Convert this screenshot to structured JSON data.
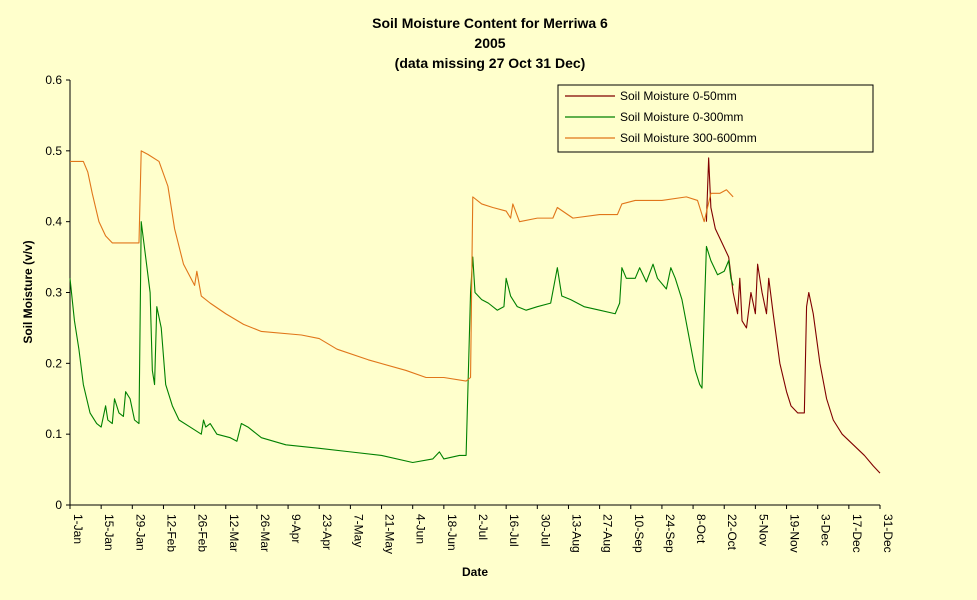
{
  "chart_data": {
    "type": "line",
    "title": "Soil Moisture Content for Merriwa 6",
    "subtitle_lines": [
      "2005",
      "(data missing 27 Oct 31 Dec)"
    ],
    "xlabel": "Date",
    "ylabel": "Soil Moisture (v/v)",
    "x_is_date": true,
    "xlim": [
      "2005-01-01",
      "2005-12-31"
    ],
    "ylim": [
      0,
      0.6
    ],
    "y_ticks": [
      "0",
      "0.1",
      "0.2",
      "0.3",
      "0.4",
      "0.5",
      "0.6"
    ],
    "x_ticks": [
      {
        "date": "2005-01-01",
        "label": "1-Jan"
      },
      {
        "date": "2005-01-15",
        "label": "15-Jan"
      },
      {
        "date": "2005-01-29",
        "label": "29-Jan"
      },
      {
        "date": "2005-02-12",
        "label": "12-Feb"
      },
      {
        "date": "2005-02-26",
        "label": "26-Feb"
      },
      {
        "date": "2005-03-12",
        "label": "12-Mar"
      },
      {
        "date": "2005-03-26",
        "label": "26-Mar"
      },
      {
        "date": "2005-04-09",
        "label": "9-Apr"
      },
      {
        "date": "2005-04-23",
        "label": "23-Apr"
      },
      {
        "date": "2005-05-07",
        "label": "7-May"
      },
      {
        "date": "2005-05-21",
        "label": "21-May"
      },
      {
        "date": "2005-06-04",
        "label": "4-Jun"
      },
      {
        "date": "2005-06-18",
        "label": "18-Jun"
      },
      {
        "date": "2005-07-02",
        "label": "2-Jul"
      },
      {
        "date": "2005-07-16",
        "label": "16-Jul"
      },
      {
        "date": "2005-07-30",
        "label": "30-Jul"
      },
      {
        "date": "2005-08-13",
        "label": "13-Aug"
      },
      {
        "date": "2005-08-27",
        "label": "27-Aug"
      },
      {
        "date": "2005-09-10",
        "label": "10-Sep"
      },
      {
        "date": "2005-09-24",
        "label": "24-Sep"
      },
      {
        "date": "2005-10-08",
        "label": "8-Oct"
      },
      {
        "date": "2005-10-22",
        "label": "22-Oct"
      },
      {
        "date": "2005-11-05",
        "label": "5-Nov"
      },
      {
        "date": "2005-11-19",
        "label": "19-Nov"
      },
      {
        "date": "2005-12-03",
        "label": "3-Dec"
      },
      {
        "date": "2005-12-17",
        "label": "17-Dec"
      },
      {
        "date": "2005-12-31",
        "label": "31-Dec"
      }
    ],
    "grid": false,
    "legend_position": "top-right",
    "series": [
      {
        "name": "Soil Moisture 0-50mm",
        "color": "#800000",
        "points": [
          [
            "2005-10-14",
            0.4
          ],
          [
            "2005-10-15",
            0.49
          ],
          [
            "2005-10-16",
            0.42
          ],
          [
            "2005-10-18",
            0.39
          ],
          [
            "2005-10-21",
            0.37
          ],
          [
            "2005-10-24",
            0.35
          ],
          [
            "2005-10-26",
            0.3
          ],
          [
            "2005-10-28",
            0.27
          ],
          [
            "2005-10-29",
            0.32
          ],
          [
            "2005-10-30",
            0.26
          ],
          [
            "2005-11-01",
            0.25
          ],
          [
            "2005-11-03",
            0.3
          ],
          [
            "2005-11-05",
            0.27
          ],
          [
            "2005-11-06",
            0.34
          ],
          [
            "2005-11-08",
            0.3
          ],
          [
            "2005-11-10",
            0.27
          ],
          [
            "2005-11-11",
            0.32
          ],
          [
            "2005-11-13",
            0.27
          ],
          [
            "2005-11-16",
            0.2
          ],
          [
            "2005-11-19",
            0.16
          ],
          [
            "2005-11-21",
            0.14
          ],
          [
            "2005-11-24",
            0.13
          ],
          [
            "2005-11-27",
            0.13
          ],
          [
            "2005-11-28",
            0.28
          ],
          [
            "2005-11-29",
            0.3
          ],
          [
            "2005-12-01",
            0.27
          ],
          [
            "2005-12-04",
            0.2
          ],
          [
            "2005-12-07",
            0.15
          ],
          [
            "2005-12-10",
            0.12
          ],
          [
            "2005-12-14",
            0.1
          ],
          [
            "2005-12-19",
            0.085
          ],
          [
            "2005-12-24",
            0.07
          ],
          [
            "2005-12-28",
            0.055
          ],
          [
            "2005-12-31",
            0.045
          ]
        ]
      },
      {
        "name": "Soil Moisture 0-300mm",
        "color": "#008000",
        "points": [
          [
            "2005-01-01",
            0.32
          ],
          [
            "2005-01-03",
            0.26
          ],
          [
            "2005-01-05",
            0.22
          ],
          [
            "2005-01-07",
            0.17
          ],
          [
            "2005-01-10",
            0.13
          ],
          [
            "2005-01-13",
            0.115
          ],
          [
            "2005-01-15",
            0.11
          ],
          [
            "2005-01-17",
            0.14
          ],
          [
            "2005-01-18",
            0.12
          ],
          [
            "2005-01-20",
            0.115
          ],
          [
            "2005-01-21",
            0.15
          ],
          [
            "2005-01-23",
            0.13
          ],
          [
            "2005-01-25",
            0.125
          ],
          [
            "2005-01-26",
            0.16
          ],
          [
            "2005-01-28",
            0.15
          ],
          [
            "2005-01-30",
            0.12
          ],
          [
            "2005-02-01",
            0.115
          ],
          [
            "2005-02-02",
            0.4
          ],
          [
            "2005-02-04",
            0.35
          ],
          [
            "2005-02-06",
            0.3
          ],
          [
            "2005-02-07",
            0.19
          ],
          [
            "2005-02-08",
            0.17
          ],
          [
            "2005-02-09",
            0.28
          ],
          [
            "2005-02-11",
            0.25
          ],
          [
            "2005-02-13",
            0.17
          ],
          [
            "2005-02-16",
            0.14
          ],
          [
            "2005-02-19",
            0.12
          ],
          [
            "2005-02-24",
            0.11
          ],
          [
            "2005-03-01",
            0.1
          ],
          [
            "2005-03-02",
            0.12
          ],
          [
            "2005-03-03",
            0.11
          ],
          [
            "2005-03-05",
            0.115
          ],
          [
            "2005-03-08",
            0.1
          ],
          [
            "2005-03-14",
            0.095
          ],
          [
            "2005-03-17",
            0.09
          ],
          [
            "2005-03-19",
            0.115
          ],
          [
            "2005-03-22",
            0.11
          ],
          [
            "2005-03-28",
            0.095
          ],
          [
            "2005-04-08",
            0.085
          ],
          [
            "2005-04-23",
            0.08
          ],
          [
            "2005-05-07",
            0.075
          ],
          [
            "2005-05-21",
            0.07
          ],
          [
            "2005-06-04",
            0.06
          ],
          [
            "2005-06-13",
            0.065
          ],
          [
            "2005-06-16",
            0.075
          ],
          [
            "2005-06-18",
            0.065
          ],
          [
            "2005-06-25",
            0.07
          ],
          [
            "2005-06-28",
            0.07
          ],
          [
            "2005-06-30",
            0.3
          ],
          [
            "2005-07-01",
            0.35
          ],
          [
            "2005-07-02",
            0.3
          ],
          [
            "2005-07-05",
            0.29
          ],
          [
            "2005-07-08",
            0.285
          ],
          [
            "2005-07-12",
            0.275
          ],
          [
            "2005-07-15",
            0.28
          ],
          [
            "2005-07-16",
            0.32
          ],
          [
            "2005-07-18",
            0.295
          ],
          [
            "2005-07-21",
            0.28
          ],
          [
            "2005-07-25",
            0.275
          ],
          [
            "2005-07-30",
            0.28
          ],
          [
            "2005-08-05",
            0.285
          ],
          [
            "2005-08-08",
            0.335
          ],
          [
            "2005-08-10",
            0.295
          ],
          [
            "2005-08-14",
            0.29
          ],
          [
            "2005-08-20",
            0.28
          ],
          [
            "2005-08-27",
            0.275
          ],
          [
            "2005-09-03",
            0.27
          ],
          [
            "2005-09-05",
            0.285
          ],
          [
            "2005-09-06",
            0.335
          ],
          [
            "2005-09-08",
            0.32
          ],
          [
            "2005-09-12",
            0.32
          ],
          [
            "2005-09-14",
            0.335
          ],
          [
            "2005-09-17",
            0.315
          ],
          [
            "2005-09-20",
            0.34
          ],
          [
            "2005-09-22",
            0.32
          ],
          [
            "2005-09-26",
            0.305
          ],
          [
            "2005-09-28",
            0.335
          ],
          [
            "2005-09-30",
            0.32
          ],
          [
            "2005-10-03",
            0.29
          ],
          [
            "2005-10-06",
            0.24
          ],
          [
            "2005-10-09",
            0.19
          ],
          [
            "2005-10-11",
            0.17
          ],
          [
            "2005-10-12",
            0.165
          ],
          [
            "2005-10-13",
            0.27
          ],
          [
            "2005-10-14",
            0.365
          ],
          [
            "2005-10-16",
            0.345
          ],
          [
            "2005-10-19",
            0.325
          ],
          [
            "2005-10-22",
            0.33
          ],
          [
            "2005-10-24",
            0.345
          ],
          [
            "2005-10-25",
            0.32
          ],
          [
            "2005-10-26",
            0.31
          ]
        ]
      },
      {
        "name": "Soil Moisture 300-600mm",
        "color": "#e0761a",
        "points": [
          [
            "2005-01-01",
            0.485
          ],
          [
            "2005-01-03",
            0.485
          ],
          [
            "2005-01-07",
            0.485
          ],
          [
            "2005-01-09",
            0.47
          ],
          [
            "2005-01-11",
            0.44
          ],
          [
            "2005-01-14",
            0.4
          ],
          [
            "2005-01-17",
            0.38
          ],
          [
            "2005-01-20",
            0.37
          ],
          [
            "2005-01-25",
            0.37
          ],
          [
            "2005-02-01",
            0.37
          ],
          [
            "2005-02-02",
            0.5
          ],
          [
            "2005-02-05",
            0.495
          ],
          [
            "2005-02-10",
            0.485
          ],
          [
            "2005-02-14",
            0.45
          ],
          [
            "2005-02-17",
            0.39
          ],
          [
            "2005-02-21",
            0.34
          ],
          [
            "2005-02-26",
            0.31
          ],
          [
            "2005-02-27",
            0.33
          ],
          [
            "2005-03-01",
            0.295
          ],
          [
            "2005-03-05",
            0.285
          ],
          [
            "2005-03-12",
            0.27
          ],
          [
            "2005-03-20",
            0.255
          ],
          [
            "2005-03-28",
            0.245
          ],
          [
            "2005-04-15",
            0.24
          ],
          [
            "2005-04-23",
            0.235
          ],
          [
            "2005-05-01",
            0.22
          ],
          [
            "2005-05-15",
            0.205
          ],
          [
            "2005-06-01",
            0.19
          ],
          [
            "2005-06-10",
            0.18
          ],
          [
            "2005-06-18",
            0.18
          ],
          [
            "2005-06-28",
            0.175
          ],
          [
            "2005-06-30",
            0.18
          ],
          [
            "2005-07-01",
            0.435
          ],
          [
            "2005-07-05",
            0.425
          ],
          [
            "2005-07-10",
            0.42
          ],
          [
            "2005-07-16",
            0.415
          ],
          [
            "2005-07-18",
            0.405
          ],
          [
            "2005-07-19",
            0.425
          ],
          [
            "2005-07-22",
            0.4
          ],
          [
            "2005-07-30",
            0.405
          ],
          [
            "2005-08-06",
            0.405
          ],
          [
            "2005-08-08",
            0.42
          ],
          [
            "2005-08-15",
            0.405
          ],
          [
            "2005-08-27",
            0.41
          ],
          [
            "2005-09-04",
            0.41
          ],
          [
            "2005-09-06",
            0.425
          ],
          [
            "2005-09-12",
            0.43
          ],
          [
            "2005-09-24",
            0.43
          ],
          [
            "2005-10-05",
            0.435
          ],
          [
            "2005-10-10",
            0.43
          ],
          [
            "2005-10-13",
            0.4
          ],
          [
            "2005-10-16",
            0.44
          ],
          [
            "2005-10-20",
            0.44
          ],
          [
            "2005-10-23",
            0.445
          ],
          [
            "2005-10-26",
            0.435
          ]
        ]
      }
    ]
  }
}
